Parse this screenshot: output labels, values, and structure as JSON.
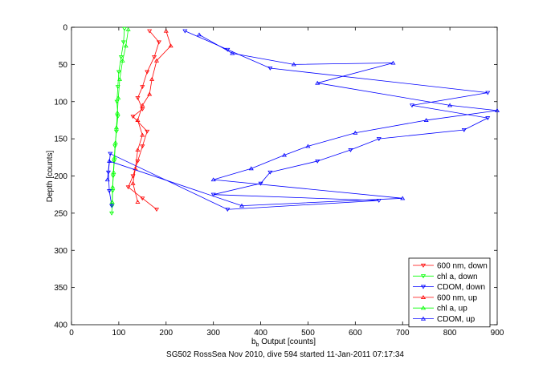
{
  "chart_data": {
    "type": "scatter",
    "title": "",
    "xlabel": "b_b Output [counts]",
    "xlabel_main": "b",
    "xlabel_sub": "b",
    "xlabel_rest": " Output [counts]",
    "ylabel": "Depth [counts]",
    "caption": "SG502 RossSea Nov 2010, dive 594 started 11-Jan-2011 07:17:34",
    "xlim": [
      0,
      900
    ],
    "ylim": [
      0,
      400
    ],
    "y_reversed": true,
    "xticks": [
      0,
      100,
      200,
      300,
      400,
      500,
      600,
      700,
      800,
      900
    ],
    "yticks": [
      0,
      50,
      100,
      150,
      200,
      250,
      300,
      350,
      400
    ],
    "grid": false,
    "legend_position": "bottom-right",
    "series": [
      {
        "name": "600 nm, down",
        "color": "#ff0000",
        "marker": "triangle-down",
        "points": [
          [
            165,
            5
          ],
          [
            185,
            20
          ],
          [
            175,
            40
          ],
          [
            160,
            60
          ],
          [
            150,
            80
          ],
          [
            140,
            95
          ],
          [
            150,
            110
          ],
          [
            130,
            120
          ],
          [
            160,
            140
          ],
          [
            150,
            160
          ],
          [
            140,
            180
          ],
          [
            130,
            200
          ],
          [
            120,
            215
          ],
          [
            150,
            230
          ],
          [
            180,
            245
          ]
        ]
      },
      {
        "name": "chl a, down",
        "color": "#00ff00",
        "marker": "triangle-down",
        "points": [
          [
            112,
            2
          ],
          [
            110,
            20
          ],
          [
            105,
            40
          ],
          [
            100,
            60
          ],
          [
            98,
            80
          ],
          [
            96,
            100
          ],
          [
            98,
            120
          ],
          [
            95,
            140
          ],
          [
            92,
            160
          ],
          [
            90,
            180
          ],
          [
            88,
            200
          ],
          [
            87,
            220
          ],
          [
            86,
            240
          ],
          [
            85,
            250
          ]
        ]
      },
      {
        "name": "CDOM, down",
        "color": "#0000ff",
        "marker": "triangle-down",
        "points": [
          [
            240,
            5
          ],
          [
            330,
            30
          ],
          [
            420,
            55
          ],
          [
            880,
            88
          ],
          [
            720,
            105
          ],
          [
            880,
            122
          ],
          [
            830,
            138
          ],
          [
            650,
            150
          ],
          [
            590,
            165
          ],
          [
            520,
            180
          ],
          [
            420,
            195
          ],
          [
            400,
            210
          ],
          [
            300,
            225
          ],
          [
            650,
            233
          ],
          [
            330,
            245
          ],
          [
            82,
            170
          ],
          [
            78,
            195
          ],
          [
            80,
            220
          ],
          [
            85,
            240
          ]
        ]
      },
      {
        "name": "600 nm, up",
        "color": "#ff0000",
        "marker": "triangle-up",
        "points": [
          [
            200,
            5
          ],
          [
            210,
            25
          ],
          [
            180,
            45
          ],
          [
            170,
            70
          ],
          [
            165,
            90
          ],
          [
            150,
            105
          ],
          [
            140,
            125
          ],
          [
            150,
            145
          ],
          [
            140,
            165
          ],
          [
            135,
            190
          ],
          [
            130,
            210
          ],
          [
            140,
            235
          ]
        ]
      },
      {
        "name": "chl a, up",
        "color": "#00ff00",
        "marker": "triangle-up",
        "points": [
          [
            120,
            3
          ],
          [
            115,
            25
          ],
          [
            108,
            45
          ],
          [
            102,
            70
          ],
          [
            99,
            95
          ],
          [
            97,
            115
          ],
          [
            95,
            135
          ],
          [
            93,
            155
          ],
          [
            91,
            175
          ],
          [
            89,
            195
          ],
          [
            87,
            215
          ],
          [
            86,
            235
          ]
        ]
      },
      {
        "name": "CDOM, up",
        "color": "#0000ff",
        "marker": "triangle-up",
        "points": [
          [
            270,
            10
          ],
          [
            340,
            35
          ],
          [
            470,
            50
          ],
          [
            680,
            48
          ],
          [
            520,
            75
          ],
          [
            800,
            105
          ],
          [
            900,
            112
          ],
          [
            750,
            125
          ],
          [
            600,
            142
          ],
          [
            500,
            160
          ],
          [
            450,
            172
          ],
          [
            380,
            190
          ],
          [
            300,
            205
          ],
          [
            700,
            230
          ],
          [
            360,
            240
          ],
          [
            80,
            180
          ],
          [
            76,
            205
          ]
        ]
      }
    ]
  }
}
